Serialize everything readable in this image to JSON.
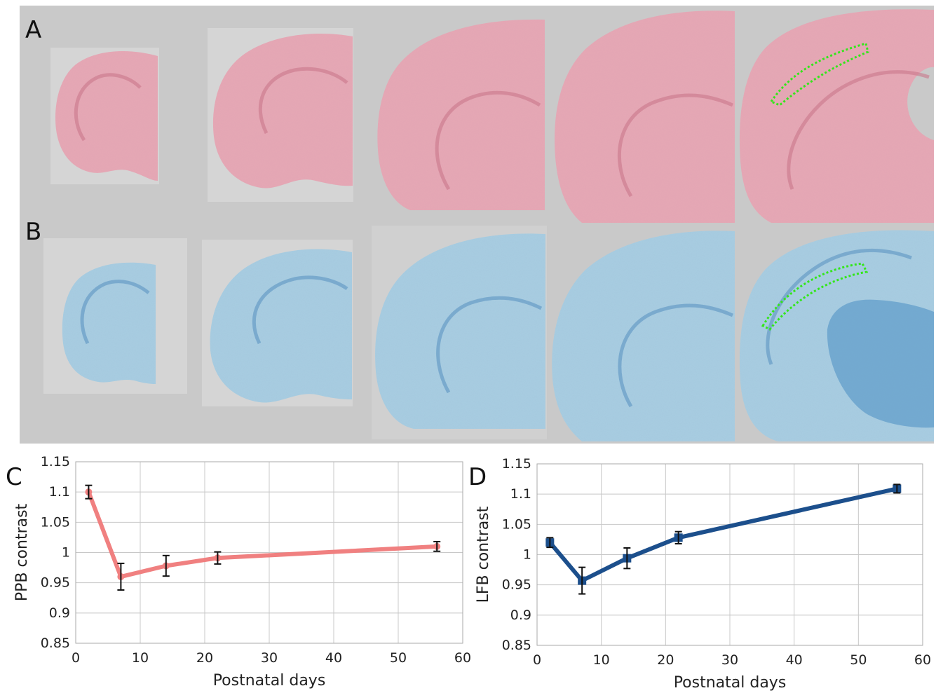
{
  "figure": {
    "panel_labels": {
      "a": "A",
      "b": "B",
      "c": "C",
      "d": "D"
    },
    "histology": {
      "row_a_stain_color": "#e6a8b6",
      "row_b_stain_color": "#a8cde2",
      "roi_outline_color": "#33e61a",
      "background_color": "#c9c9c9",
      "section_count_per_row": 5
    }
  },
  "chart_data": [
    {
      "type": "line",
      "panel": "C",
      "title": "",
      "xlabel": "Postnatal days",
      "ylabel": "PPB contrast",
      "xlim": [
        0,
        60
      ],
      "ylim": [
        0.85,
        1.15
      ],
      "x_ticks": [
        "0",
        "10",
        "20",
        "30",
        "40",
        "50",
        "60"
      ],
      "y_ticks": [
        "0.85",
        "0.9",
        "0.95",
        "1",
        "1.05",
        "1.1",
        "1.15"
      ],
      "grid": true,
      "legend": "none",
      "series": [
        {
          "color": "#f08080",
          "x": [
            2,
            7,
            14,
            22,
            56
          ],
          "y": [
            1.1,
            0.96,
            0.978,
            0.991,
            1.01
          ],
          "error": [
            0.011,
            0.022,
            0.017,
            0.01,
            0.008
          ]
        }
      ]
    },
    {
      "type": "line",
      "panel": "D",
      "title": "",
      "xlabel": "Postnatal days",
      "ylabel": "LFB contrast",
      "xlim": [
        0,
        60
      ],
      "ylim": [
        0.85,
        1.15
      ],
      "x_ticks": [
        "0",
        "10",
        "20",
        "30",
        "40",
        "50",
        "60"
      ],
      "y_ticks": [
        "0.85",
        "0.9",
        "0.95",
        "1",
        "1.05",
        "1.1",
        "1.15"
      ],
      "grid": true,
      "legend": "none",
      "series": [
        {
          "color": "#1c4f8c",
          "x": [
            2,
            7,
            14,
            22,
            56
          ],
          "y": [
            1.02,
            0.957,
            0.994,
            1.028,
            1.109
          ],
          "error": [
            0.008,
            0.022,
            0.017,
            0.01,
            0.007
          ]
        }
      ]
    }
  ]
}
